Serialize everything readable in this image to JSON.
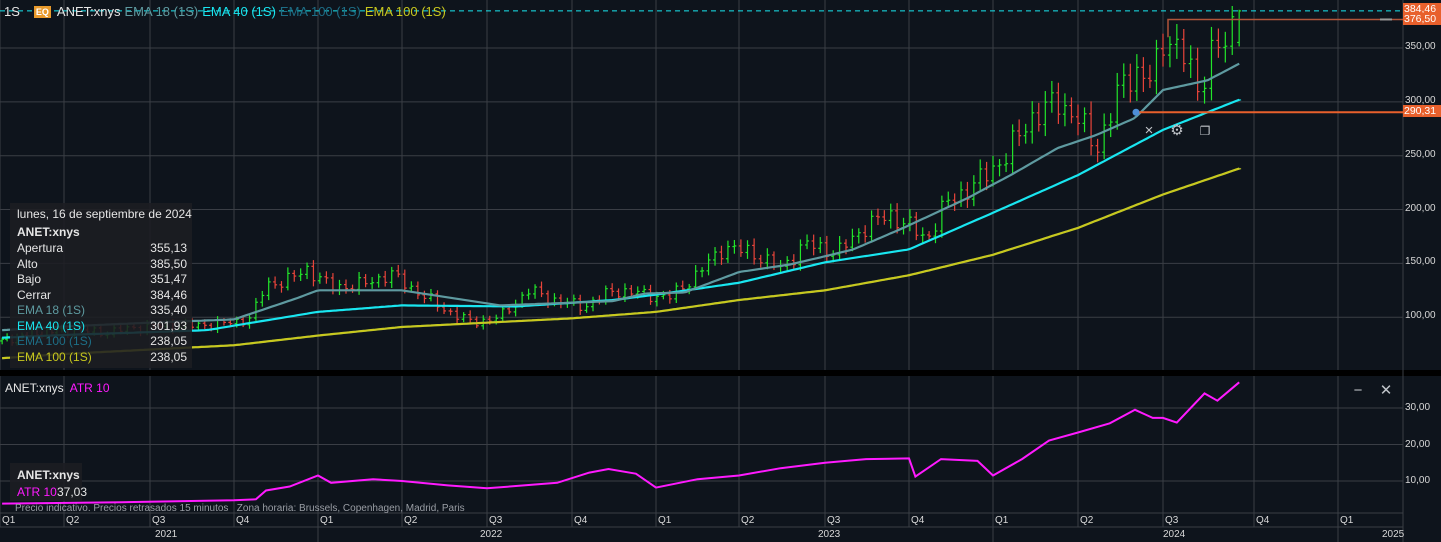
{
  "header": {
    "interval": "1S",
    "badge": "EQ",
    "symbol": "ANET:xnys",
    "indicators": [
      {
        "label": "EMA 18 (1S)",
        "color": "#5e9aa0"
      },
      {
        "label": "EMA 40 (1S)",
        "color": "#19e6f0"
      },
      {
        "label": "EMA 100 (1S)",
        "color": "#1d6e86"
      },
      {
        "label": "EMA 100 (1S)",
        "color": "#c8c81e"
      }
    ]
  },
  "tooltip": {
    "date": "lunes, 16 de septiembre de 2024",
    "symbol": "ANET:xnys",
    "rows": [
      {
        "label": "Apertura",
        "value": "355,13",
        "color": "#e6e6e6"
      },
      {
        "label": "Alto",
        "value": "385,50",
        "color": "#e6e6e6"
      },
      {
        "label": "Bajo",
        "value": "351,47",
        "color": "#e6e6e6"
      },
      {
        "label": "Cerrar",
        "value": "384,46",
        "color": "#e6e6e6"
      },
      {
        "label": "EMA 18 (1S)",
        "value": "335,40",
        "color": "#5e9aa0"
      },
      {
        "label": "EMA 40 (1S)",
        "value": "301,93",
        "color": "#19e6f0"
      },
      {
        "label": "EMA 100 (1S)",
        "value": "238,05",
        "color": "#1d6e86"
      },
      {
        "label": "EMA 100 (1S)",
        "value": "238,05",
        "color": "#c8c81e"
      }
    ]
  },
  "price_axis": {
    "ticks": [
      {
        "value": 350,
        "label": "350,00"
      },
      {
        "value": 300,
        "label": "300,00"
      },
      {
        "value": 250,
        "label": "250,00"
      },
      {
        "value": 200,
        "label": "200,00"
      },
      {
        "value": 150,
        "label": "150,00"
      },
      {
        "value": 100,
        "label": "100,00"
      }
    ],
    "last_price": {
      "value": 384.46,
      "label": "384,46",
      "color": "#19e6f0"
    },
    "level_high": {
      "value": 376.5,
      "label": "376,50",
      "color": "#e8602c"
    },
    "level_low": {
      "value": 290.31,
      "label": "290,31",
      "color": "#e8602c"
    }
  },
  "drawing_toolbar": {
    "close": "×",
    "settings": "⚙",
    "copy": "❐"
  },
  "atr_pane": {
    "symbol": "ANET:xnys",
    "indicator": "ATR 10",
    "value": "37,03",
    "color": "#ff1aff",
    "ticks": [
      {
        "value": 30,
        "label": "30,00"
      },
      {
        "value": 20,
        "label": "20,00"
      },
      {
        "value": 10,
        "label": "10,00"
      }
    ],
    "minimize": "−",
    "close": "✕"
  },
  "footnote": "Precio indicativo. Precios retrasados 15 minutos   Zona horaria: Brussels, Copenhagen, Madrid, Paris",
  "time_axis": {
    "quarters": [
      {
        "date": "2021-01-01",
        "label": "Q1"
      },
      {
        "date": "2021-04-01",
        "label": "Q2"
      },
      {
        "date": "2021-07-01",
        "label": "Q3"
      },
      {
        "date": "2021-10-01",
        "label": "Q4"
      },
      {
        "date": "2022-01-01",
        "label": "Q1"
      },
      {
        "date": "2022-04-01",
        "label": "Q2"
      },
      {
        "date": "2022-07-01",
        "label": "Q3"
      },
      {
        "date": "2022-10-01",
        "label": "Q4"
      },
      {
        "date": "2023-01-01",
        "label": "Q1"
      },
      {
        "date": "2023-04-01",
        "label": "Q2"
      },
      {
        "date": "2023-07-01",
        "label": "Q3"
      },
      {
        "date": "2023-10-01",
        "label": "Q4"
      },
      {
        "date": "2024-01-01",
        "label": "Q1"
      },
      {
        "date": "2024-04-01",
        "label": "Q2"
      },
      {
        "date": "2024-07-01",
        "label": "Q3"
      },
      {
        "date": "2024-10-01",
        "label": "Q4"
      },
      {
        "date": "2025-01-01",
        "label": "Q1"
      }
    ],
    "years": [
      "2021",
      "2022",
      "2023",
      "2024",
      "2025"
    ]
  },
  "chart_data": [
    {
      "type": "line",
      "title": "ANET:xnys",
      "interval": "weekly",
      "ylim": [
        60,
        390
      ],
      "bar_colors": {
        "up": "#22e52a",
        "down": "#e8443a"
      },
      "close": [
        [
          "2021-01-04",
          78
        ],
        [
          "2021-02-15",
          85
        ],
        [
          "2021-04-01",
          88
        ],
        [
          "2021-05-15",
          86
        ],
        [
          "2021-07-01",
          92
        ],
        [
          "2021-08-15",
          92
        ],
        [
          "2021-10-01",
          95
        ],
        [
          "2021-10-20",
          100
        ],
        [
          "2021-11-05",
          130
        ],
        [
          "2021-12-01",
          135
        ],
        [
          "2021-12-20",
          145
        ],
        [
          "2022-01-15",
          128
        ],
        [
          "2022-02-15",
          130
        ],
        [
          "2022-03-20",
          140
        ],
        [
          "2022-04-15",
          125
        ],
        [
          "2022-05-15",
          108
        ],
        [
          "2022-06-15",
          95
        ],
        [
          "2022-07-15",
          100
        ],
        [
          "2022-08-15",
          125
        ],
        [
          "2022-09-15",
          115
        ],
        [
          "2022-10-15",
          110
        ],
        [
          "2022-11-15",
          125
        ],
        [
          "2022-12-15",
          122
        ],
        [
          "2023-01-15",
          118
        ],
        [
          "2023-02-15",
          140
        ],
        [
          "2023-03-15",
          165
        ],
        [
          "2023-04-15",
          160
        ],
        [
          "2023-05-15",
          145
        ],
        [
          "2023-06-10",
          168
        ],
        [
          "2023-07-15",
          160
        ],
        [
          "2023-08-15",
          185
        ],
        [
          "2023-09-10",
          195
        ],
        [
          "2023-10-01",
          185
        ],
        [
          "2023-10-20",
          172
        ],
        [
          "2023-11-10",
          205
        ],
        [
          "2023-12-15",
          225
        ],
        [
          "2024-01-15",
          250
        ],
        [
          "2024-02-10",
          285
        ],
        [
          "2024-03-10",
          300
        ],
        [
          "2024-04-01",
          285
        ],
        [
          "2024-04-20",
          255
        ],
        [
          "2024-05-15",
          310
        ],
        [
          "2024-06-01",
          330
        ],
        [
          "2024-06-20",
          320
        ],
        [
          "2024-07-05",
          365
        ],
        [
          "2024-07-25",
          340
        ],
        [
          "2024-08-05",
          305
        ],
        [
          "2024-08-20",
          355
        ],
        [
          "2024-09-05",
          350
        ],
        [
          "2024-09-16",
          384.46
        ]
      ],
      "series": [
        {
          "name": "EMA 100 (1S)",
          "color": "#1d6e86",
          "points": [
            [
              "2021-01-04",
              62
            ],
            [
              "2021-07-01",
              70
            ],
            [
              "2021-10-01",
              74
            ],
            [
              "2022-01-01",
              83
            ],
            [
              "2022-04-01",
              91
            ],
            [
              "2022-07-01",
              95
            ],
            [
              "2022-10-01",
              99
            ],
            [
              "2023-01-01",
              105
            ],
            [
              "2023-04-01",
              116
            ],
            [
              "2023-07-01",
              125
            ],
            [
              "2023-10-01",
              139
            ],
            [
              "2024-01-01",
              158
            ],
            [
              "2024-04-01",
              183
            ],
            [
              "2024-07-01",
              214
            ],
            [
              "2024-09-16",
              238.05
            ]
          ]
        },
        {
          "name": "EMA 100 (1S)",
          "color": "#c8c81e",
          "points": [
            [
              "2021-01-04",
              62
            ],
            [
              "2021-07-01",
              70
            ],
            [
              "2021-10-01",
              74
            ],
            [
              "2022-01-01",
              83
            ],
            [
              "2022-04-01",
              91
            ],
            [
              "2022-07-01",
              95
            ],
            [
              "2022-10-01",
              99
            ],
            [
              "2023-01-01",
              105
            ],
            [
              "2023-04-01",
              116
            ],
            [
              "2023-07-01",
              125
            ],
            [
              "2023-10-01",
              139
            ],
            [
              "2024-01-01",
              158
            ],
            [
              "2024-04-01",
              183
            ],
            [
              "2024-07-01",
              214
            ],
            [
              "2024-09-16",
              238.05
            ]
          ]
        },
        {
          "name": "EMA 40 (1S)",
          "color": "#19e6f0",
          "points": [
            [
              "2021-01-04",
              81
            ],
            [
              "2021-09-01",
              88
            ],
            [
              "2022-01-01",
              105
            ],
            [
              "2022-04-01",
              111
            ],
            [
              "2022-08-01",
              110
            ],
            [
              "2022-11-15",
              116
            ],
            [
              "2023-01-01",
              121
            ],
            [
              "2023-04-01",
              132
            ],
            [
              "2023-07-01",
              151
            ],
            [
              "2023-10-01",
              163
            ],
            [
              "2024-01-01",
              197
            ],
            [
              "2024-04-01",
              232
            ],
            [
              "2024-07-01",
              274
            ],
            [
              "2024-09-16",
              301.93
            ]
          ]
        },
        {
          "name": "EMA 18 (1S)",
          "color": "#5e9aa0",
          "points": [
            [
              "2021-01-04",
              88
            ],
            [
              "2021-07-01",
              95
            ],
            [
              "2021-10-01",
              98
            ],
            [
              "2021-12-10",
              118
            ],
            [
              "2022-01-01",
              125
            ],
            [
              "2022-04-01",
              125
            ],
            [
              "2022-07-15",
              111
            ],
            [
              "2022-11-15",
              115
            ],
            [
              "2022-12-20",
              122
            ],
            [
              "2023-02-01",
              123
            ],
            [
              "2023-04-01",
              142
            ],
            [
              "2023-05-25",
              149
            ],
            [
              "2023-08-01",
              163
            ],
            [
              "2023-09-25",
              183
            ],
            [
              "2023-12-05",
              211
            ],
            [
              "2024-01-20",
              232
            ],
            [
              "2024-03-10",
              257
            ],
            [
              "2024-04-20",
              269
            ],
            [
              "2024-06-01",
              285
            ],
            [
              "2024-07-01",
              311
            ],
            [
              "2024-08-15",
              320
            ],
            [
              "2024-09-16",
              335.4
            ]
          ]
        }
      ]
    },
    {
      "type": "line",
      "title": "ATR 10",
      "ylim": [
        0,
        38
      ],
      "series": [
        {
          "name": "ATR 10",
          "color": "#ff1aff",
          "points": [
            [
              "2021-01-04",
              3.8
            ],
            [
              "2021-06-01",
              4.2
            ],
            [
              "2021-10-01",
              4.7
            ],
            [
              "2021-10-25",
              5.0
            ],
            [
              "2021-11-05",
              7.4
            ],
            [
              "2021-12-01",
              8.5
            ],
            [
              "2022-01-01",
              11.5
            ],
            [
              "2022-01-15",
              9.5
            ],
            [
              "2022-03-01",
              10.5
            ],
            [
              "2022-04-01",
              10
            ],
            [
              "2022-05-20",
              8.8
            ],
            [
              "2022-07-01",
              8
            ],
            [
              "2022-09-15",
              9.5
            ],
            [
              "2022-10-20",
              12.3
            ],
            [
              "2022-11-10",
              13.3
            ],
            [
              "2022-12-10",
              12
            ],
            [
              "2023-01-01",
              8.2
            ],
            [
              "2023-02-15",
              10.5
            ],
            [
              "2023-04-01",
              11.5
            ],
            [
              "2023-05-15",
              13.5
            ],
            [
              "2023-07-01",
              15
            ],
            [
              "2023-08-15",
              16
            ],
            [
              "2023-10-01",
              16.2
            ],
            [
              "2023-10-08",
              11.2
            ],
            [
              "2023-11-05",
              16
            ],
            [
              "2023-12-15",
              15.5
            ],
            [
              "2024-01-01",
              11.5
            ],
            [
              "2024-02-01",
              16
            ],
            [
              "2024-03-01",
              21.1
            ],
            [
              "2024-04-01",
              23.3
            ],
            [
              "2024-05-05",
              25.8
            ],
            [
              "2024-06-01",
              29.5
            ],
            [
              "2024-06-20",
              27.3
            ],
            [
              "2024-07-01",
              27.3
            ],
            [
              "2024-07-15",
              26
            ],
            [
              "2024-08-12",
              34
            ],
            [
              "2024-08-25",
              32
            ],
            [
              "2024-09-16",
              37.03
            ]
          ]
        }
      ]
    }
  ]
}
